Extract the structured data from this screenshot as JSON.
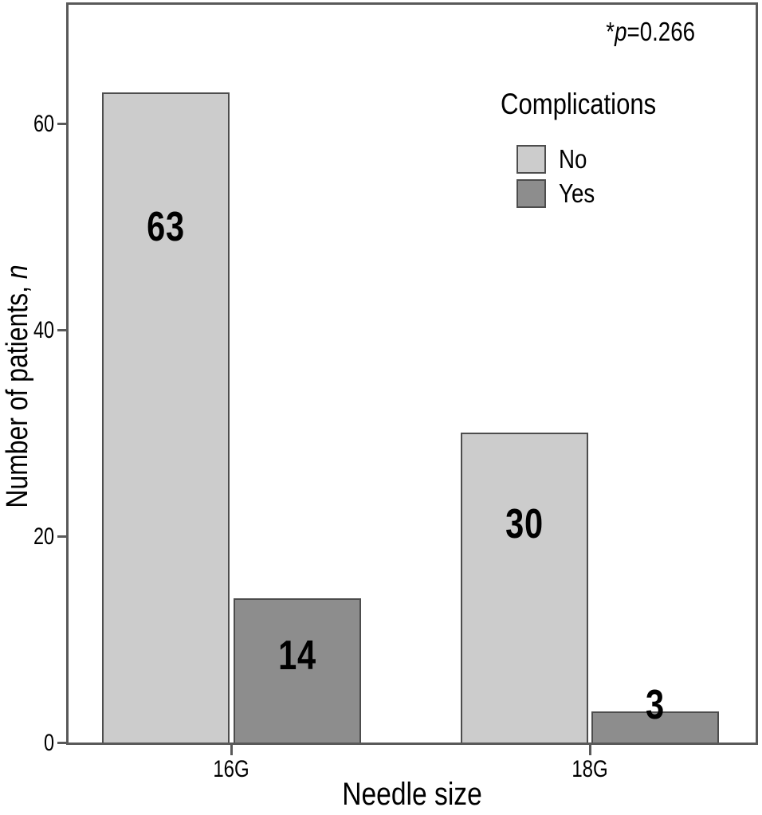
{
  "chart_data": {
    "type": "bar",
    "title": "",
    "categories": [
      "16G",
      "18G"
    ],
    "series": [
      {
        "name": "No",
        "values": [
          63,
          30
        ],
        "color": "#cccccc"
      },
      {
        "name": "Yes",
        "values": [
          14,
          3
        ],
        "color": "#8d8d8d"
      }
    ],
    "xlabel": "Needle size",
    "ylabel": "Number of patients, n",
    "ylabel_prefix": "Number of patients, ",
    "ylabel_italic": "n",
    "y_tick_labels": [
      "0",
      "20",
      "40",
      "60"
    ],
    "ylim": [
      0,
      71.8
    ],
    "grid": false,
    "bar_value_labels": [
      "63",
      "14",
      "30",
      "3"
    ],
    "legend": {
      "title": "Complications",
      "entries": [
        "No",
        "Yes"
      ],
      "position": "upper-right-inside"
    },
    "annotation": {
      "full": "*p=0.266",
      "star": "*",
      "symbol": "p",
      "value": "=0.266"
    },
    "colors": {
      "frame": "#595959",
      "bar_border": "#4d4d4d",
      "bar_no": "#cccccc",
      "bar_yes": "#8d8d8d",
      "text": "#000000",
      "background": "#ffffff"
    }
  }
}
